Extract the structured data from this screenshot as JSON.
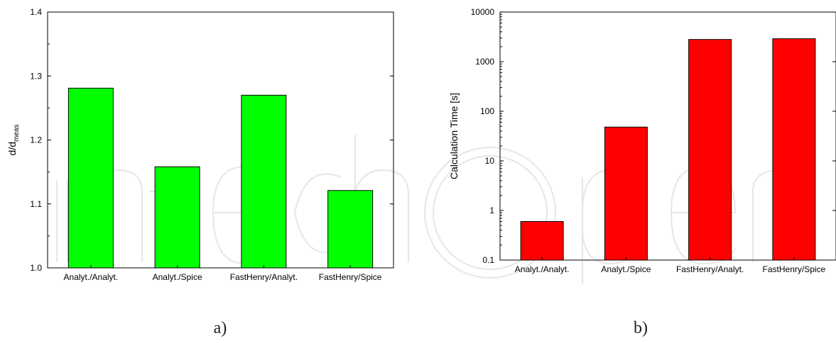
{
  "chart_data": [
    {
      "type": "bar",
      "panel_label": "a)",
      "categories": [
        "Analyt./Analyt.",
        "Analyt./Spice",
        "FastHenry/Analyt.",
        "FastHenry/Spice"
      ],
      "values": [
        1.281,
        1.158,
        1.27,
        1.121
      ],
      "ylabel": "d/d",
      "ylabel_sub": "meas",
      "ylim": [
        1.0,
        1.4
      ],
      "yticks": [
        "1.0",
        "1.1",
        "1.2",
        "1.3",
        "1.4"
      ],
      "ytick_values": [
        1.0,
        1.1,
        1.2,
        1.3,
        1.4
      ],
      "yscale": "linear",
      "color": "#00ff00",
      "grid": false
    },
    {
      "type": "bar",
      "panel_label": "b)",
      "categories": [
        "Analyt./Analyt.",
        "Analyt./Spice",
        "FastHenry/Analyt.",
        "FastHenry/Spice"
      ],
      "values": [
        0.6,
        48,
        2800,
        2900
      ],
      "ylabel": "Calculation Time [s]",
      "ylim": [
        0.1,
        10000
      ],
      "yticks": [
        "0.1",
        "1",
        "10",
        "100",
        "1000",
        "10000"
      ],
      "ytick_values": [
        0.1,
        1,
        10,
        100,
        1000,
        10000
      ],
      "yscale": "log",
      "color": "#ff0000",
      "grid": false
    }
  ]
}
